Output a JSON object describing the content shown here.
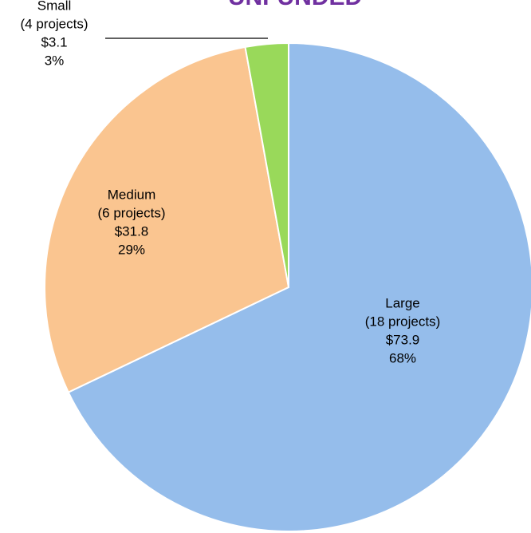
{
  "chart_data": {
    "type": "pie",
    "title": "UNFUNDED",
    "categories": [
      "Large",
      "Medium",
      "Small"
    ],
    "details": [
      "(18 projects)",
      "(6 projects)",
      "(4 projects)"
    ],
    "values": [
      73.9,
      31.8,
      3.1
    ],
    "value_labels": [
      "$73.9",
      "$31.8",
      "$3.1"
    ],
    "percents": [
      68,
      29,
      3
    ],
    "percent_labels": [
      "68%",
      "29%",
      "3%"
    ],
    "colors": [
      "#95bdeb",
      "#fac590",
      "#99d95a"
    ]
  }
}
